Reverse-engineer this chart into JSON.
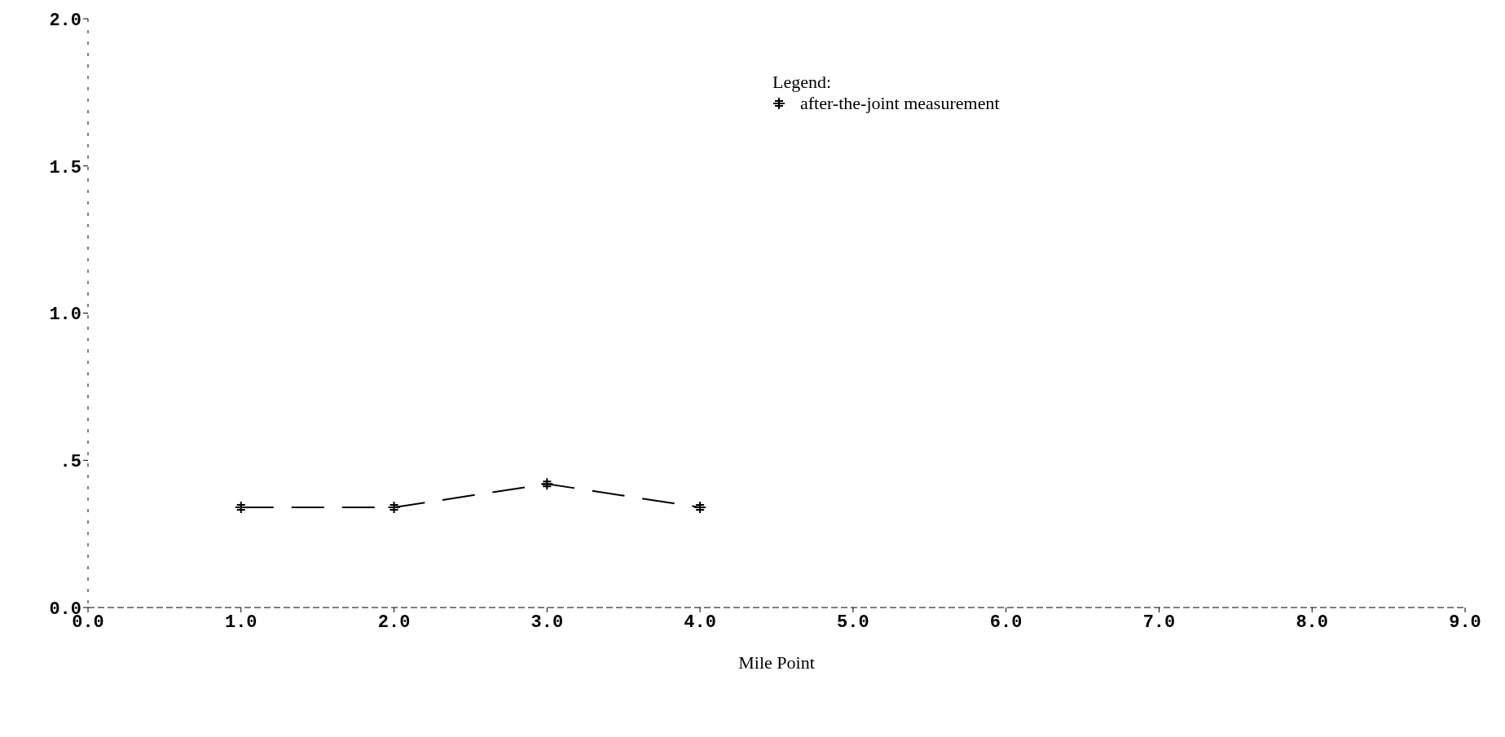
{
  "chart_data": {
    "type": "line",
    "xlabel": "Mile Point",
    "legend_title": "Legend:",
    "x": [
      1,
      2,
      3,
      4
    ],
    "series": [
      {
        "name": "after-the-joint measurement",
        "color": "#000000",
        "values": [
          0.34,
          0.34,
          0.42,
          0.34
        ]
      }
    ],
    "xlim": [
      0,
      9
    ],
    "xticks": [
      {
        "value": 0,
        "label": "0.0"
      },
      {
        "value": 1,
        "label": "1.0"
      },
      {
        "value": 2,
        "label": "2.0"
      },
      {
        "value": 3,
        "label": "3.0"
      },
      {
        "value": 4,
        "label": "4.0"
      },
      {
        "value": 5,
        "label": "5.0"
      },
      {
        "value": 6,
        "label": "6.0"
      },
      {
        "value": 7,
        "label": "7.0"
      },
      {
        "value": 8,
        "label": "8.0"
      },
      {
        "value": 9,
        "label": "9.0"
      }
    ],
    "ylim": [
      0,
      2
    ],
    "yticks": [
      {
        "value": 0,
        "label": "0.0"
      },
      {
        "value": 0.5,
        "label": ".5"
      },
      {
        "value": 1,
        "label": "1.0"
      },
      {
        "value": 1.5,
        "label": "1.5"
      },
      {
        "value": 2,
        "label": "2.0"
      }
    ],
    "grid": false,
    "legend": "top right",
    "marker": "cross",
    "line_style": "dashed"
  }
}
